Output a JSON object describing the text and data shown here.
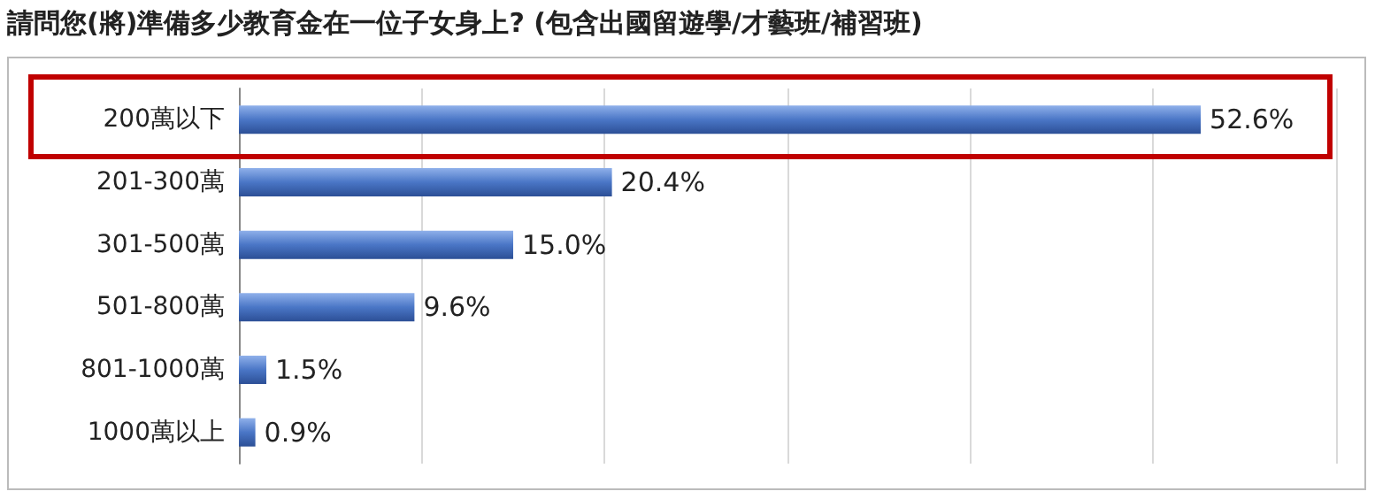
{
  "chart_data": {
    "type": "bar",
    "orientation": "horizontal",
    "title": "請問您(將)準備多少教育金在一位子女身上? (包含出國留遊學/才藝班/補習班)",
    "categories": [
      "200萬以下",
      "201-300萬",
      "301-500萬",
      "501-800萬",
      "801-1000萬",
      "1000萬以上"
    ],
    "values": [
      52.6,
      20.4,
      15.0,
      9.6,
      1.5,
      0.9
    ],
    "value_labels": [
      "52.6%",
      "20.4%",
      "15.0%",
      "9.6%",
      "1.5%",
      "0.9%"
    ],
    "color": "#4a76c6",
    "xlim": [
      0,
      60
    ],
    "xticks": [
      {
        "value": 0,
        "label": null
      },
      {
        "value": 10,
        "label": null
      },
      {
        "value": 20,
        "label": null
      },
      {
        "value": 30,
        "label": null
      },
      {
        "value": 40,
        "label": null
      },
      {
        "value": 50,
        "label": null
      },
      {
        "value": 60,
        "label": null
      }
    ],
    "grid": "x",
    "tick_labels": "y"
  }
}
